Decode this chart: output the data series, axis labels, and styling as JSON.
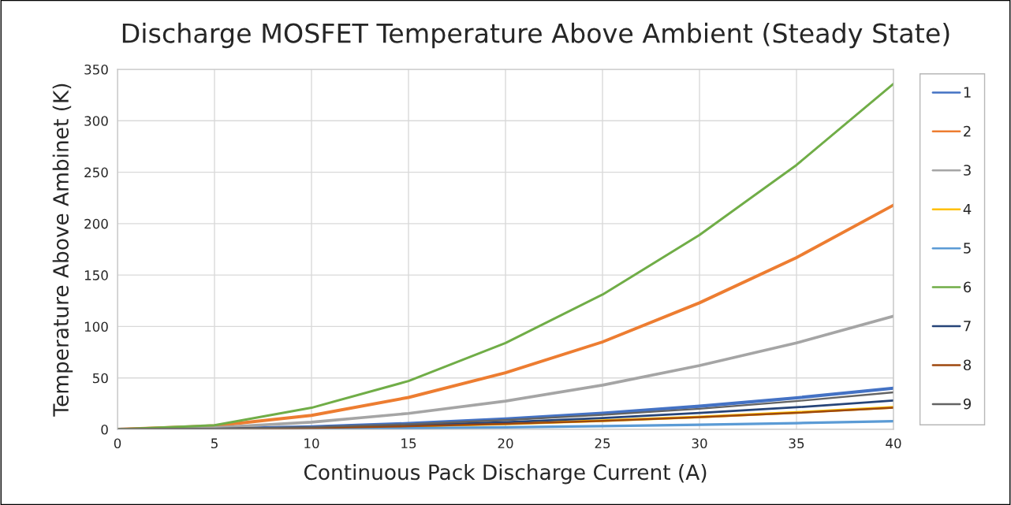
{
  "chart_data": {
    "type": "line",
    "title": "Discharge MOSFET Temperature Above Ambient (Steady State)",
    "xlabel": "Continuous Pack Discharge Current (A)",
    "ylabel": "Temperature Above Ambinet (K)",
    "x": [
      0,
      5,
      10,
      15,
      20,
      25,
      30,
      35,
      40
    ],
    "series": [
      {
        "name": "1",
        "color": "#4472c4",
        "values": [
          0,
          0.6,
          2.5,
          5.6,
          10,
          15.6,
          22.5,
          30.6,
          40
        ]
      },
      {
        "name": "2",
        "color": "#ed7d31",
        "values": [
          0,
          3.4,
          13.6,
          31,
          55,
          85,
          123,
          167,
          218
        ]
      },
      {
        "name": "3",
        "color": "#a5a5a5",
        "values": [
          0,
          1.7,
          7,
          15.5,
          27.5,
          43,
          62,
          84,
          110
        ]
      },
      {
        "name": "4",
        "color": "#ffc000",
        "values": [
          null,
          null,
          null,
          3,
          5.4,
          8.4,
          12,
          16.5,
          21.5
        ]
      },
      {
        "name": "5",
        "color": "#5b9bd5",
        "values": [
          0,
          0.1,
          0.5,
          1.1,
          2,
          3.1,
          4.5,
          6.1,
          8
        ]
      },
      {
        "name": "6",
        "color": "#70ad47",
        "values": [
          0,
          4,
          21,
          47,
          84,
          131,
          189,
          257,
          336
        ]
      },
      {
        "name": "7",
        "color": "#264478",
        "values": [
          0,
          0.4,
          1.8,
          4,
          7,
          11,
          16,
          21.5,
          28
        ]
      },
      {
        "name": "8",
        "color": "#9e480e",
        "values": [
          0,
          0.3,
          1.3,
          3,
          5.3,
          8.2,
          11.8,
          16,
          21
        ]
      },
      {
        "name": "9",
        "color": "#636363",
        "values": [
          0,
          0.6,
          2.2,
          5,
          9,
          14,
          20,
          27.5,
          36
        ]
      }
    ],
    "xlim": [
      0,
      40
    ],
    "xticks": [
      0,
      5,
      10,
      15,
      20,
      25,
      30,
      35,
      40
    ],
    "ylim": [
      0,
      350
    ],
    "yticks": [
      0,
      50,
      100,
      150,
      200,
      250,
      300,
      350
    ],
    "grid": true,
    "legend": "right",
    "marker": "none",
    "line_style": "solid"
  }
}
